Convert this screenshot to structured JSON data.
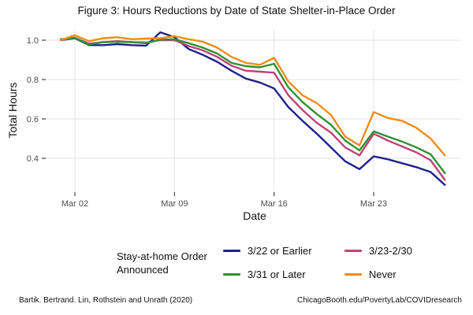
{
  "title": "Figure 3: Hours Reductions by Date of State Shelter-in-Place Order",
  "legend": {
    "title_line1": "Stay-at-home Order",
    "title_line2": "Announced"
  },
  "footer": {
    "left": "Bartik. Bertrand. Lin, Rothstein and Unrath (2020)",
    "right": "ChicagoBooth.edu/PovertyLab/COVIDresearch"
  },
  "chart_data": {
    "type": "line",
    "title": "Figure 3: Hours Reductions by Date of State Shelter-in-Place Order",
    "xlabel": "Date",
    "ylabel": "Total Hours",
    "grid": true,
    "legend_position": "bottom",
    "ylim": [
      0.23,
      1.06
    ],
    "y_ticks": [
      0.4,
      0.6,
      0.8,
      1.0
    ],
    "x_tick_days": [
      2,
      9,
      16,
      23
    ],
    "x_tick_labels": [
      "Mar 02",
      "Mar 09",
      "Mar 16",
      "Mar 23"
    ],
    "x": [
      "Mar 01",
      "Mar 02",
      "Mar 03",
      "Mar 04",
      "Mar 05",
      "Mar 06",
      "Mar 07",
      "Mar 08",
      "Mar 09",
      "Mar 10",
      "Mar 11",
      "Mar 12",
      "Mar 13",
      "Mar 14",
      "Mar 15",
      "Mar 16",
      "Mar 17",
      "Mar 18",
      "Mar 19",
      "Mar 20",
      "Mar 21",
      "Mar 22",
      "Mar 23",
      "Mar 24",
      "Mar 25",
      "Mar 26",
      "Mar 27",
      "Mar 28"
    ],
    "series": [
      {
        "name": "3/22 or Earlier",
        "color": "#1f218c",
        "values": [
          1.0,
          1.01,
          0.975,
          0.975,
          0.98,
          0.975,
          0.972,
          1.04,
          1.015,
          0.955,
          0.925,
          0.89,
          0.845,
          0.805,
          0.785,
          0.755,
          0.66,
          0.59,
          0.525,
          0.455,
          0.385,
          0.345,
          0.41,
          0.395,
          0.375,
          0.355,
          0.33,
          0.265
        ]
      },
      {
        "name": "3/23-2/30",
        "color": "#bc4577",
        "values": [
          1.0,
          1.012,
          0.982,
          0.99,
          0.995,
          0.99,
          0.988,
          1.0,
          1.0,
          0.97,
          0.948,
          0.915,
          0.87,
          0.845,
          0.84,
          0.835,
          0.72,
          0.645,
          0.58,
          0.53,
          0.455,
          0.415,
          0.525,
          0.49,
          0.46,
          0.43,
          0.39,
          0.29
        ]
      },
      {
        "name": "3/31 or Later",
        "color": "#2f9133",
        "values": [
          1.005,
          1.012,
          0.978,
          0.99,
          0.992,
          0.99,
          0.985,
          1.003,
          1.005,
          0.985,
          0.962,
          0.932,
          0.885,
          0.868,
          0.862,
          0.88,
          0.76,
          0.685,
          0.625,
          0.57,
          0.49,
          0.44,
          0.537,
          0.51,
          0.485,
          0.455,
          0.42,
          0.325
        ]
      },
      {
        "name": "Never",
        "color": "#ef8c1a",
        "values": [
          1.0,
          1.025,
          0.995,
          1.01,
          1.015,
          1.005,
          1.008,
          1.01,
          1.02,
          1.005,
          0.992,
          0.962,
          0.915,
          0.885,
          0.875,
          0.91,
          0.79,
          0.72,
          0.68,
          0.62,
          0.51,
          0.465,
          0.635,
          0.605,
          0.59,
          0.555,
          0.5,
          0.415
        ]
      }
    ]
  }
}
